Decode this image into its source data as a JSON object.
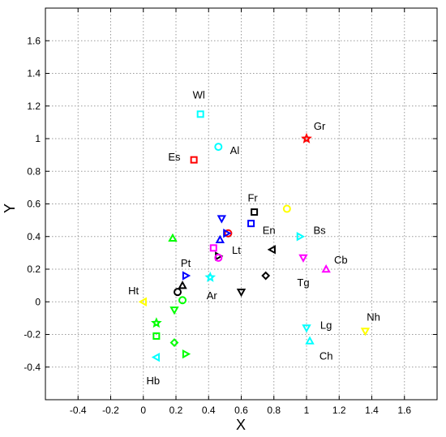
{
  "chart_data": {
    "type": "scatter",
    "title": "",
    "xlabel": "X",
    "ylabel": "Y",
    "xlim": [
      -0.6,
      1.8
    ],
    "ylim": [
      -0.6,
      1.8
    ],
    "grid": true,
    "xticks": [
      -0.4,
      -0.2,
      0,
      0.2,
      0.4,
      0.6,
      0.8,
      1,
      1.2,
      1.4,
      1.6
    ],
    "yticks": [
      -0.4,
      -0.2,
      0,
      0.2,
      0.4,
      0.6,
      0.8,
      1,
      1.2,
      1.4,
      1.6
    ],
    "xtick_labels": [
      "-0.4",
      "-0.2",
      "0",
      "0.2",
      "0.4",
      "0.6",
      "0.8",
      "1",
      "1.2",
      "1.4",
      "1.6"
    ],
    "ytick_labels": [
      "-0.4",
      "-0.2",
      "0",
      "0.2",
      "0.4",
      "0.6",
      "0.8",
      "1",
      "1.2",
      "1.4",
      "1.6"
    ],
    "labels": [
      {
        "text": "Wl",
        "x": 0.34,
        "y": 1.27
      },
      {
        "text": "Gr",
        "x": 1.08,
        "y": 1.08
      },
      {
        "text": "Es",
        "x": 0.19,
        "y": 0.89
      },
      {
        "text": "Al",
        "x": 0.56,
        "y": 0.93
      },
      {
        "text": "Fr",
        "x": 0.67,
        "y": 0.64
      },
      {
        "text": "En",
        "x": 0.77,
        "y": 0.44
      },
      {
        "text": "Bs",
        "x": 1.08,
        "y": 0.44
      },
      {
        "text": "Lt",
        "x": 0.57,
        "y": 0.32
      },
      {
        "text": "Cb",
        "x": 1.21,
        "y": 0.26
      },
      {
        "text": "Pt",
        "x": 0.26,
        "y": 0.24
      },
      {
        "text": "Tg",
        "x": 0.98,
        "y": 0.12
      },
      {
        "text": "Ht",
        "x": -0.06,
        "y": 0.07
      },
      {
        "text": "Ar",
        "x": 0.42,
        "y": 0.04
      },
      {
        "text": "Nh",
        "x": 1.41,
        "y": -0.09
      },
      {
        "text": "Lg",
        "x": 1.12,
        "y": -0.14
      },
      {
        "text": "Ch",
        "x": 1.12,
        "y": -0.33
      },
      {
        "text": "Hb",
        "x": 0.06,
        "y": -0.48
      }
    ],
    "points": [
      {
        "x": 0.35,
        "y": 1.15,
        "marker": "square",
        "color": "#00ffff"
      },
      {
        "x": 1.0,
        "y": 1.0,
        "marker": "star",
        "color": "#ff0000"
      },
      {
        "x": 0.31,
        "y": 0.87,
        "marker": "square",
        "color": "#ff0000"
      },
      {
        "x": 0.46,
        "y": 0.95,
        "marker": "circle",
        "color": "#00ffff"
      },
      {
        "x": 0.68,
        "y": 0.55,
        "marker": "square",
        "color": "#000000"
      },
      {
        "x": 0.66,
        "y": 0.48,
        "marker": "square",
        "color": "#0000ff"
      },
      {
        "x": 0.88,
        "y": 0.57,
        "marker": "circle",
        "color": "#ffff00"
      },
      {
        "x": 0.96,
        "y": 0.4,
        "marker": "triangle-right",
        "color": "#00ffff"
      },
      {
        "x": 0.48,
        "y": 0.51,
        "marker": "triangle-down",
        "color": "#0000ff"
      },
      {
        "x": 0.52,
        "y": 0.42,
        "marker": "circle",
        "color": "#ff0000"
      },
      {
        "x": 0.51,
        "y": 0.42,
        "marker": "triangle-right",
        "color": "#0000ff"
      },
      {
        "x": 0.47,
        "y": 0.38,
        "marker": "triangle-up",
        "color": "#0000ff"
      },
      {
        "x": 0.43,
        "y": 0.33,
        "marker": "square",
        "color": "#ff00ff"
      },
      {
        "x": 0.46,
        "y": 0.28,
        "marker": "triangle-right",
        "color": "#000000"
      },
      {
        "x": 0.46,
        "y": 0.27,
        "marker": "circle",
        "color": "#ff00ff"
      },
      {
        "x": 0.79,
        "y": 0.32,
        "marker": "triangle-left",
        "color": "#000000"
      },
      {
        "x": 0.98,
        "y": 0.27,
        "marker": "triangle-down",
        "color": "#ff00ff"
      },
      {
        "x": 1.12,
        "y": 0.2,
        "marker": "triangle-up",
        "color": "#ff00ff"
      },
      {
        "x": 0.75,
        "y": 0.16,
        "marker": "diamond",
        "color": "#000000"
      },
      {
        "x": 0.6,
        "y": 0.06,
        "marker": "triangle-down",
        "color": "#000000"
      },
      {
        "x": 0.18,
        "y": 0.39,
        "marker": "triangle-up",
        "color": "#00ff00"
      },
      {
        "x": 0.26,
        "y": 0.16,
        "marker": "triangle-right",
        "color": "#0000ff"
      },
      {
        "x": 0.41,
        "y": 0.15,
        "marker": "star",
        "color": "#00ffff"
      },
      {
        "x": 0.24,
        "y": 0.1,
        "marker": "triangle-up",
        "color": "#000000"
      },
      {
        "x": 0.21,
        "y": 0.06,
        "marker": "circle",
        "color": "#000000"
      },
      {
        "x": 0.24,
        "y": 0.01,
        "marker": "circle",
        "color": "#00ff00"
      },
      {
        "x": 0.0,
        "y": 0.0,
        "marker": "triangle-left",
        "color": "#ffff00"
      },
      {
        "x": 0.19,
        "y": -0.05,
        "marker": "triangle-down",
        "color": "#00ff00"
      },
      {
        "x": 0.08,
        "y": -0.13,
        "marker": "star",
        "color": "#00ff00"
      },
      {
        "x": 0.08,
        "y": -0.21,
        "marker": "square",
        "color": "#00ff00"
      },
      {
        "x": 0.19,
        "y": -0.25,
        "marker": "diamond",
        "color": "#00ff00"
      },
      {
        "x": 0.26,
        "y": -0.32,
        "marker": "triangle-right",
        "color": "#00ff00"
      },
      {
        "x": 0.08,
        "y": -0.34,
        "marker": "triangle-left",
        "color": "#00ffff"
      },
      {
        "x": 1.36,
        "y": -0.18,
        "marker": "triangle-down",
        "color": "#ffff00"
      },
      {
        "x": 1.0,
        "y": -0.16,
        "marker": "triangle-down",
        "color": "#00ffff"
      },
      {
        "x": 1.02,
        "y": -0.24,
        "marker": "triangle-up",
        "color": "#00ffff"
      }
    ]
  }
}
